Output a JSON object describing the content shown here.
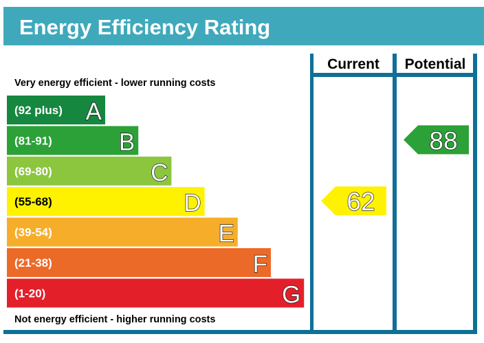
{
  "title": "Energy Efficiency Rating",
  "top_note": "Very energy efficient - lower running costs",
  "bottom_note": "Not energy efficient - higher running costs",
  "columns": [
    "Current",
    "Potential"
  ],
  "colors": {
    "header": "#3fa9bb",
    "frame": "#0f6f97"
  },
  "chart_data": {
    "type": "bar",
    "title": "Energy Efficiency Rating",
    "bands": [
      {
        "letter": "A",
        "range": "(92 plus)",
        "color": "#16873f"
      },
      {
        "letter": "B",
        "range": "(81-91)",
        "color": "#2ba137"
      },
      {
        "letter": "C",
        "range": "(69-80)",
        "color": "#8cc63f"
      },
      {
        "letter": "D",
        "range": "(55-68)",
        "color": "#fff200"
      },
      {
        "letter": "E",
        "range": "(39-54)",
        "color": "#f6ae2a"
      },
      {
        "letter": "F",
        "range": "(21-38)",
        "color": "#ec6a28"
      },
      {
        "letter": "G",
        "range": "(1-20)",
        "color": "#e3202a"
      }
    ],
    "ratings": [
      {
        "column": "Current",
        "value": "62",
        "band": "D"
      },
      {
        "column": "Potential",
        "value": "88",
        "band": "B"
      }
    ]
  }
}
